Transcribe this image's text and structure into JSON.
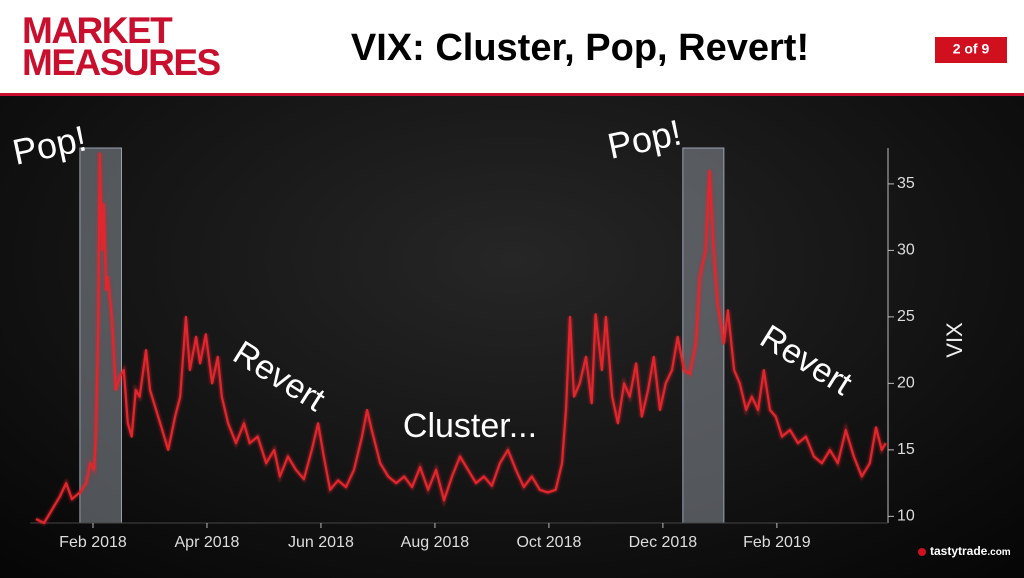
{
  "header": {
    "brand": [
      "MARKET",
      "MEASURES"
    ],
    "page": "2 of 9",
    "logo": "tastytrade",
    "logo_suffix": ".com"
  },
  "chart_data": {
    "type": "line",
    "title": "VIX: Cluster, Pop, Revert!",
    "y_label": "VIX",
    "color": "#e3262d",
    "grid": false,
    "xlim": [
      0,
      14.95
    ],
    "ylim": [
      9.5,
      37.7
    ],
    "xticks": [
      {
        "value": 1,
        "label": "Feb 2018"
      },
      {
        "value": 3,
        "label": "Apr 2018"
      },
      {
        "value": 5,
        "label": "Jun 2018"
      },
      {
        "value": 7,
        "label": "Aug 2018"
      },
      {
        "value": 9,
        "label": "Oct 2018"
      },
      {
        "value": 11,
        "label": "Dec 2018"
      },
      {
        "value": 13,
        "label": "Feb 2019"
      }
    ],
    "yticks": [
      10,
      15,
      20,
      25,
      30,
      35
    ],
    "shaded_regions": [
      {
        "start": 0.77,
        "end": 1.5
      },
      {
        "start": 11.35,
        "end": 12.07
      }
    ],
    "annotations": [
      "Pop!",
      "Pop!",
      "Revert",
      "Revert",
      "Cluster..."
    ],
    "x": [
      0,
      0.14,
      0.28,
      0.42,
      0.53,
      0.63,
      0.77,
      0.88,
      0.95,
      1.02,
      1.05,
      1.09,
      1.12,
      1.16,
      1.19,
      1.23,
      1.26,
      1.33,
      1.4,
      1.47,
      1.54,
      1.61,
      1.68,
      1.75,
      1.82,
      1.93,
      2.0,
      2.18,
      2.32,
      2.44,
      2.53,
      2.63,
      2.7,
      2.81,
      2.88,
      2.98,
      3.09,
      3.19,
      3.26,
      3.37,
      3.51,
      3.65,
      3.75,
      3.89,
      4.04,
      4.18,
      4.28,
      4.42,
      4.56,
      4.7,
      4.84,
      4.95,
      5.05,
      5.16,
      5.3,
      5.44,
      5.58,
      5.72,
      5.81,
      5.89,
      6.04,
      6.18,
      6.32,
      6.46,
      6.6,
      6.74,
      6.88,
      7.02,
      7.16,
      7.3,
      7.44,
      7.58,
      7.72,
      7.86,
      8.0,
      8.14,
      8.28,
      8.42,
      8.56,
      8.7,
      8.84,
      8.98,
      9.12,
      9.23,
      9.3,
      9.37,
      9.44,
      9.54,
      9.65,
      9.75,
      9.82,
      9.93,
      10.0,
      10.11,
      10.21,
      10.32,
      10.42,
      10.53,
      10.63,
      10.74,
      10.84,
      10.95,
      11.05,
      11.16,
      11.26,
      11.37,
      11.47,
      11.58,
      11.65,
      11.75,
      11.82,
      11.89,
      11.96,
      12.07,
      12.14,
      12.25,
      12.35,
      12.46,
      12.56,
      12.67,
      12.77,
      12.88,
      12.98,
      13.09,
      13.23,
      13.37,
      13.51,
      13.65,
      13.79,
      13.93,
      14.07,
      14.21,
      14.35,
      14.49,
      14.63,
      14.74,
      14.84,
      14.91
    ],
    "values": [
      9.8,
      9.5,
      10.5,
      11.5,
      12.5,
      11.3,
      11.8,
      12.5,
      14,
      13.5,
      16,
      24,
      37.3,
      30,
      33.5,
      27,
      28,
      25,
      19.5,
      20.5,
      21,
      17,
      16,
      19.5,
      19,
      22.5,
      19.5,
      17,
      15,
      17.5,
      19,
      25,
      21,
      23.5,
      21.5,
      23.7,
      20,
      22,
      19,
      17,
      15.5,
      17,
      15.5,
      16,
      14,
      15,
      13,
      14.5,
      13.5,
      12.8,
      15,
      17,
      14.5,
      12,
      12.7,
      12.2,
      13.5,
      16,
      18,
      16.5,
      14,
      13,
      12.5,
      13,
      12.2,
      13.7,
      12,
      13.5,
      11.2,
      13,
      14.5,
      13.5,
      12.5,
      13,
      12.3,
      14,
      15,
      13.5,
      12.2,
      13,
      12,
      11.8,
      12,
      14,
      18,
      25,
      19,
      20,
      22,
      18.5,
      25.2,
      21,
      25,
      19,
      17,
      20,
      19,
      21.5,
      17.5,
      19.5,
      22,
      18,
      20,
      21,
      23.5,
      21,
      20.7,
      23,
      28,
      30,
      36,
      30,
      26,
      23,
      25.5,
      21,
      20,
      18,
      19,
      18,
      21,
      18,
      17.5,
      16,
      16.5,
      15.5,
      16,
      14.5,
      14,
      15,
      14,
      16.5,
      14.5,
      13,
      14,
      16.7,
      15,
      15.5
    ]
  }
}
